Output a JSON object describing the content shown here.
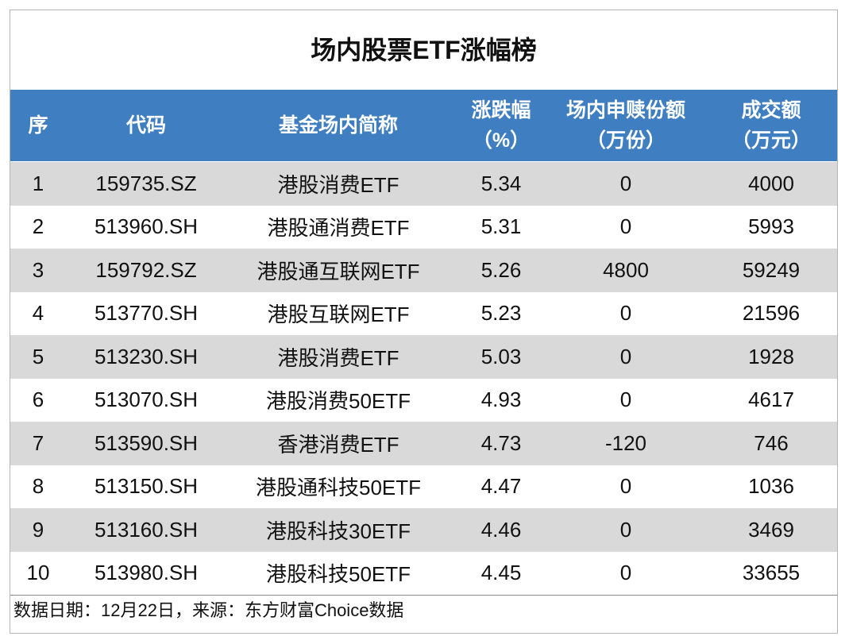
{
  "title": "场内股票ETF涨幅榜",
  "table": {
    "header": [
      [
        "序"
      ],
      [
        "代码"
      ],
      [
        "基金场内简称"
      ],
      [
        "涨跌幅",
        "（%）"
      ],
      [
        "场内申赎份额",
        "（万份）"
      ],
      [
        "成交额",
        "（万元）"
      ]
    ],
    "rows": [
      [
        "1",
        "159735.SZ",
        "港股消费ETF",
        "5.34",
        "0",
        "4000"
      ],
      [
        "2",
        "513960.SH",
        "港股通消费ETF",
        "5.31",
        "0",
        "5993"
      ],
      [
        "3",
        "159792.SZ",
        "港股通互联网ETF",
        "5.26",
        "4800",
        "59249"
      ],
      [
        "4",
        "513770.SH",
        "港股互联网ETF",
        "5.23",
        "0",
        "21596"
      ],
      [
        "5",
        "513230.SH",
        "港股消费ETF",
        "5.03",
        "0",
        "1928"
      ],
      [
        "6",
        "513070.SH",
        "港股消费50ETF",
        "4.93",
        "0",
        "4617"
      ],
      [
        "7",
        "513590.SH",
        "香港消费ETF",
        "4.73",
        "-120",
        "746"
      ],
      [
        "8",
        "513150.SH",
        "港股通科技50ETF",
        "4.47",
        "0",
        "1036"
      ],
      [
        "9",
        "513160.SH",
        "港股科技30ETF",
        "4.46",
        "0",
        "3469"
      ],
      [
        "10",
        "513980.SH",
        "港股科技50ETF",
        "4.45",
        "0",
        "33655"
      ]
    ]
  },
  "footer": "数据日期：12月22日，来源：东方财富Choice数据"
}
